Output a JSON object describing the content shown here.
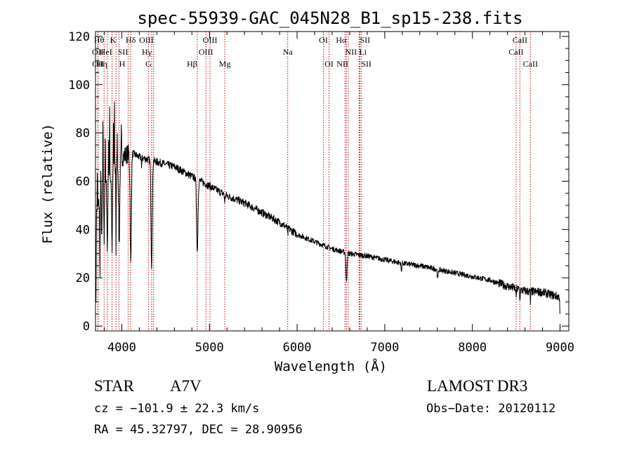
{
  "chart_data": {
    "type": "line",
    "title": "spec-55939-GAC_045N28_B1_sp15-238.fits",
    "xlabel": "Wavelength (Å)",
    "ylabel": "Flux (relative)",
    "xlim": [
      3700,
      9100
    ],
    "ylim": [
      -2,
      122
    ],
    "x_ticks": [
      4000,
      5000,
      6000,
      7000,
      8000,
      9000
    ],
    "y_ticks": [
      0,
      20,
      40,
      60,
      80,
      100,
      120
    ],
    "grid": false,
    "colors": {
      "line": "#000000",
      "marker": "#cc0000",
      "axes": "#000000"
    },
    "continuum": [
      [
        3700,
        45
      ],
      [
        3750,
        52
      ],
      [
        3850,
        60
      ],
      [
        4000,
        70
      ],
      [
        4100,
        72
      ],
      [
        4200,
        70
      ],
      [
        4300,
        69
      ],
      [
        4400,
        68
      ],
      [
        4500,
        67
      ],
      [
        4600,
        66
      ],
      [
        4700,
        64
      ],
      [
        4800,
        62
      ],
      [
        4900,
        60
      ],
      [
        5000,
        58
      ],
      [
        5100,
        56
      ],
      [
        5200,
        54
      ],
      [
        5400,
        51
      ],
      [
        5600,
        47
      ],
      [
        5800,
        43
      ],
      [
        6000,
        38
      ],
      [
        6200,
        35
      ],
      [
        6400,
        32
      ],
      [
        6600,
        30
      ],
      [
        6800,
        29
      ],
      [
        7000,
        27.5
      ],
      [
        7200,
        26
      ],
      [
        7400,
        25
      ],
      [
        7600,
        23.5
      ],
      [
        7800,
        22
      ],
      [
        8000,
        20.5
      ],
      [
        8200,
        19
      ],
      [
        8400,
        16.5
      ],
      [
        8600,
        14.5
      ],
      [
        8800,
        14
      ],
      [
        9000,
        12
      ]
    ],
    "absorption_lines": [
      {
        "center": 3705,
        "depth": 38,
        "width": 3
      },
      {
        "center": 3750,
        "depth": 30,
        "width": 4
      },
      {
        "center": 3771,
        "depth": 20,
        "width": 4
      },
      {
        "center": 3798,
        "depth": 22,
        "width": 4
      },
      {
        "center": 3835,
        "depth": 28,
        "width": 6
      },
      {
        "center": 3889,
        "depth": 30,
        "width": 7
      },
      {
        "center": 3934,
        "depth": 35,
        "width": 3
      },
      {
        "center": 3970,
        "depth": 34,
        "width": 9
      },
      {
        "center": 4102,
        "depth": 46,
        "width": 10
      },
      {
        "center": 4226,
        "depth": 5,
        "width": 3
      },
      {
        "center": 4340,
        "depth": 44,
        "width": 10
      },
      {
        "center": 4861,
        "depth": 30,
        "width": 11
      },
      {
        "center": 5175,
        "depth": 3,
        "width": 6
      },
      {
        "center": 5893,
        "depth": 3,
        "width": 5
      },
      {
        "center": 6563,
        "depth": 12,
        "width": 9
      },
      {
        "center": 7190,
        "depth": 4,
        "width": 5
      },
      {
        "center": 7605,
        "depth": 4,
        "width": 7
      },
      {
        "center": 8498,
        "depth": 4,
        "width": 4
      },
      {
        "center": 8542,
        "depth": 5,
        "width": 4
      },
      {
        "center": 8662,
        "depth": 5,
        "width": 4
      }
    ],
    "emission_spikes": [
      {
        "center": 3722,
        "height": 15,
        "width": 3
      },
      {
        "center": 3760,
        "height": 8,
        "width": 3
      },
      {
        "center": 3785,
        "height": 30,
        "width": 3
      },
      {
        "center": 3812,
        "height": 25,
        "width": 3
      },
      {
        "center": 3850,
        "height": 18,
        "width": 3
      },
      {
        "center": 3862,
        "height": 30,
        "width": 3
      },
      {
        "center": 3905,
        "height": 22,
        "width": 3
      },
      {
        "center": 3915,
        "height": 28,
        "width": 3
      },
      {
        "center": 3948,
        "height": 12,
        "width": 3
      },
      {
        "center": 3995,
        "height": 12,
        "width": 3
      }
    ],
    "spectral_lines": [
      {
        "label": "Hθ",
        "wavelength": 3798,
        "row": 0,
        "anchor": "end"
      },
      {
        "label": "OII",
        "wavelength": 3727,
        "row": 1,
        "anchor": "middle"
      },
      {
        "label": "OII",
        "wavelength": 3729,
        "row": 2,
        "anchor": "middle"
      },
      {
        "label": "Hη",
        "wavelength": 3835,
        "row": 2,
        "anchor": "end"
      },
      {
        "label": "HeI",
        "wavelength": 3889,
        "row": 1,
        "anchor": "end"
      },
      {
        "label": "K",
        "wavelength": 3934,
        "row": 0,
        "anchor": "end"
      },
      {
        "label": "SII",
        "wavelength": 4072,
        "row": 1,
        "anchor": "end"
      },
      {
        "label": "H",
        "wavelength": 3969,
        "row": 2,
        "anchor": "start"
      },
      {
        "label": "Hδ",
        "wavelength": 4102,
        "row": 0,
        "anchor": "middle"
      },
      {
        "label": "OIII",
        "wavelength": 4363,
        "row": 0,
        "anchor": "end"
      },
      {
        "label": "Hγ",
        "wavelength": 4341,
        "row": 1,
        "anchor": "end"
      },
      {
        "label": "G",
        "wavelength": 4304,
        "row": 2,
        "anchor": "middle"
      },
      {
        "label": "Hβ",
        "wavelength": 4861,
        "row": 2,
        "anchor": "end"
      },
      {
        "label": "OIII",
        "wavelength": 4959,
        "row": 1,
        "anchor": "middle"
      },
      {
        "label": "OIII",
        "wavelength": 5007,
        "row": 0,
        "anchor": "middle"
      },
      {
        "label": "Mg",
        "wavelength": 5175,
        "row": 2,
        "anchor": "middle"
      },
      {
        "label": "Na",
        "wavelength": 5893,
        "row": 1,
        "anchor": "middle"
      },
      {
        "label": "OI",
        "wavelength": 6300,
        "row": 0,
        "anchor": "middle"
      },
      {
        "label": "OI",
        "wavelength": 6364,
        "row": 2,
        "anchor": "middle"
      },
      {
        "label": "Hα",
        "wavelength": 6563,
        "row": 0,
        "anchor": "end"
      },
      {
        "label": "NII",
        "wavelength": 6548,
        "row": 1,
        "anchor": "start"
      },
      {
        "label": "NII",
        "wavelength": 6584,
        "row": 2,
        "anchor": "end"
      },
      {
        "label": "Li",
        "wavelength": 6708,
        "row": 1,
        "anchor": "start"
      },
      {
        "label": "SII",
        "wavelength": 6716,
        "row": 0,
        "anchor": "start"
      },
      {
        "label": "SII",
        "wavelength": 6731,
        "row": 2,
        "anchor": "start"
      },
      {
        "label": "CaII",
        "wavelength": 8542,
        "row": 0,
        "anchor": "middle"
      },
      {
        "label": "CaII",
        "wavelength": 8498,
        "row": 1,
        "anchor": "middle"
      },
      {
        "label": "CaII",
        "wavelength": 8662,
        "row": 2,
        "anchor": "middle"
      }
    ]
  },
  "info": {
    "class": "STAR",
    "subclass": "A7V",
    "survey": "LAMOST DR3",
    "cz": "cz = −101.9 ± 22.3 km/s",
    "obs_date": "Obs−Date: 20120112",
    "coords": "RA =  45.32797, DEC =  28.90956"
  }
}
